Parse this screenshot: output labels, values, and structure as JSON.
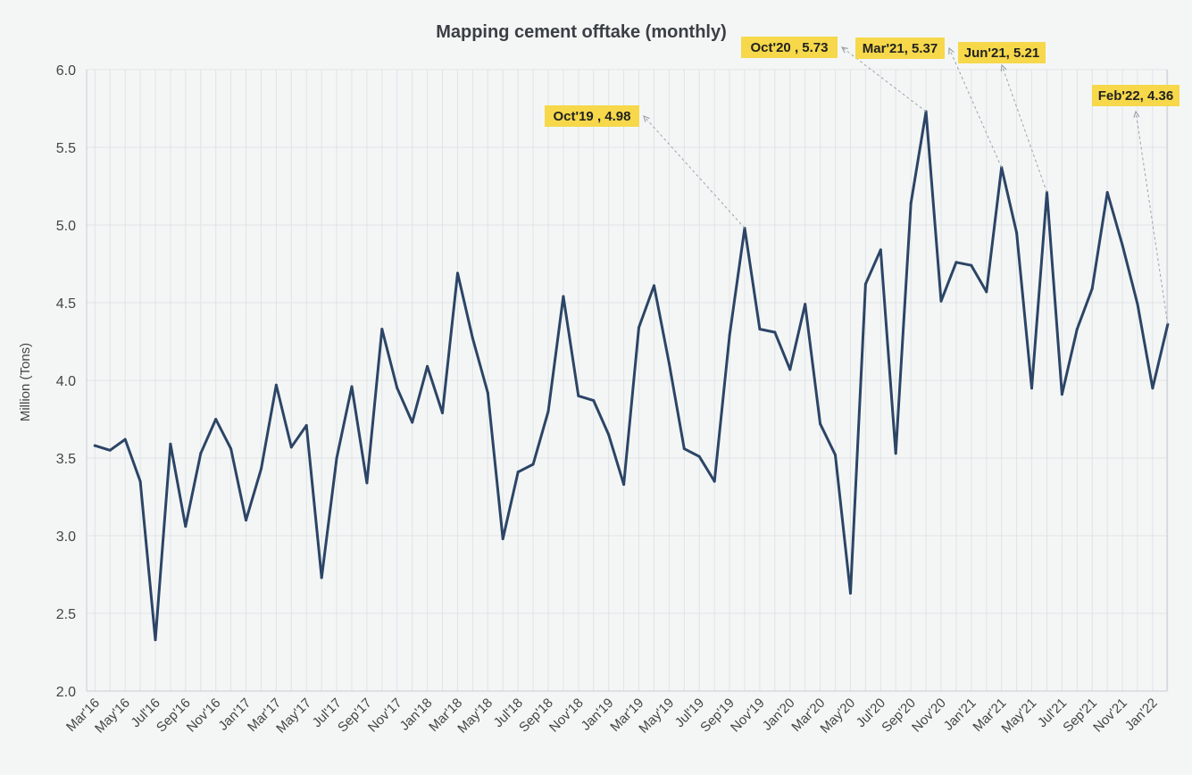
{
  "chart_data": {
    "type": "line",
    "title": "Mapping cement offtake (monthly)",
    "xlabel": "",
    "ylabel": "Million (Tons)",
    "ylim": [
      2.0,
      6.0
    ],
    "yticks": [
      "2.0",
      "2.5",
      "3.0",
      "3.5",
      "4.0",
      "4.5",
      "5.0",
      "5.5",
      "6.0"
    ],
    "grid": true,
    "x": [
      "Mar'16",
      "Apr'16",
      "May'16",
      "Jun'16",
      "Jul'16",
      "Aug'16",
      "Sep'16",
      "Oct'16",
      "Nov'16",
      "Dec'16",
      "Jan'17",
      "Feb'17",
      "Mar'17",
      "Apr'17",
      "May'17",
      "Jun'17",
      "Jul'17",
      "Aug'17",
      "Sep'17",
      "Oct'17",
      "Nov'17",
      "Dec'17",
      "Jan'18",
      "Feb'18",
      "Mar'18",
      "Apr'18",
      "May'18",
      "Jun'18",
      "Jul'18",
      "Aug'18",
      "Sep'18",
      "Oct'18",
      "Nov'18",
      "Dec'18",
      "Jan'19",
      "Feb'19",
      "Mar'19",
      "Apr'19",
      "May'19",
      "Jun'19",
      "Jul'19",
      "Aug'19",
      "Sep'19",
      "Oct'19",
      "Nov'19",
      "Dec'19",
      "Jan'20",
      "Feb'20",
      "Mar'20",
      "Apr'20",
      "May'20",
      "Jun'20",
      "Jul'20",
      "Aug'20",
      "Sep'20",
      "Oct'20",
      "Nov'20",
      "Dec'20",
      "Jan'21",
      "Feb'21",
      "Mar'21",
      "Apr'21",
      "May'21",
      "Jun'21",
      "Jul'21",
      "Aug'21",
      "Sep'21",
      "Oct'21",
      "Nov'21",
      "Dec'21",
      "Jan'22",
      "Feb'22"
    ],
    "xtick_labels": [
      "Mar'16",
      "May'16",
      "Jul'16",
      "Sep'16",
      "Nov'16",
      "Jan'17",
      "Mar'17",
      "May'17",
      "Jul'17",
      "Sep'17",
      "Nov'17",
      "Jan'18",
      "Mar'18",
      "May'18",
      "Jul'18",
      "Sep'18",
      "Nov'18",
      "Jan'19",
      "Mar'19",
      "May'19",
      "Jul'19",
      "Sep'19",
      "Nov'19",
      "Jan'20",
      "Mar'20",
      "May'20",
      "Jul'20",
      "Sep'20",
      "Nov'20",
      "Jan'21",
      "Mar'21",
      "May'21",
      "Jul'21",
      "Sep'21",
      "Nov'21",
      "Jan'22"
    ],
    "series": [
      {
        "name": "",
        "color": "#2c4566",
        "values": [
          3.58,
          3.55,
          3.62,
          3.35,
          2.33,
          3.59,
          3.06,
          3.53,
          3.75,
          3.56,
          3.1,
          3.43,
          3.97,
          3.57,
          3.71,
          2.73,
          3.5,
          3.96,
          3.34,
          4.33,
          3.95,
          3.73,
          4.09,
          3.79,
          4.69,
          4.27,
          3.92,
          2.98,
          3.41,
          3.46,
          3.8,
          4.54,
          3.9,
          3.87,
          3.65,
          3.33,
          4.34,
          4.61,
          4.11,
          3.56,
          3.51,
          3.35,
          4.29,
          4.98,
          4.33,
          4.31,
          4.07,
          4.49,
          3.72,
          3.52,
          2.63,
          4.62,
          4.84,
          3.53,
          5.14,
          5.73,
          4.51,
          4.76,
          4.74,
          4.57,
          5.37,
          4.95,
          3.95,
          5.21,
          3.91,
          4.33,
          4.59,
          5.21,
          4.87,
          4.49,
          3.95,
          4.36
        ]
      }
    ],
    "annotations": [
      {
        "text": "Oct'19 , 4.98",
        "x": "Oct'19",
        "y": 4.98,
        "arrow_dir": "up-left"
      },
      {
        "text": "Oct'20 , 5.73",
        "x": "Oct'20",
        "y": 5.73,
        "arrow_dir": "up-left"
      },
      {
        "text": "Mar'21, 5.37",
        "x": "Mar'21",
        "y": 5.37,
        "arrow_dir": "up-left"
      },
      {
        "text": "Jun'21, 5.21",
        "x": "Jun'21",
        "y": 5.21,
        "arrow_dir": "up-left"
      },
      {
        "text": "Feb'22, 4.36",
        "x": "Feb'22",
        "y": 4.36,
        "arrow_dir": "up-left"
      }
    ],
    "annotation_color": "#f6d84a"
  }
}
